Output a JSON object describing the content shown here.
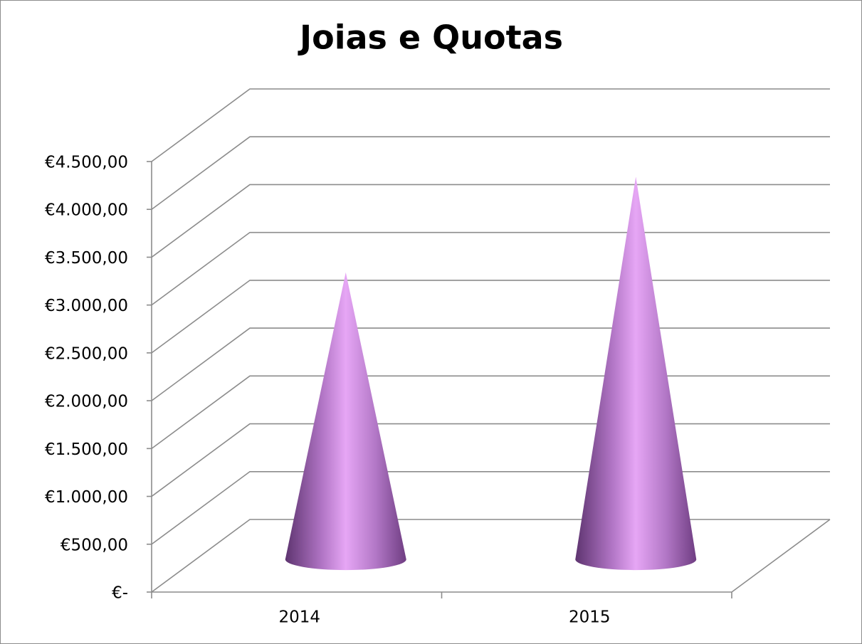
{
  "chart_data": {
    "type": "cone",
    "title": "Joias e Quotas",
    "categories": [
      "2014",
      "2015"
    ],
    "values": [
      3000,
      4000
    ],
    "color": "#c77fd9",
    "ylim": [
      0,
      4500
    ],
    "yticks": [
      {
        "value": 0,
        "label": "€-"
      },
      {
        "value": 500,
        "label": "€500,00"
      },
      {
        "value": 1000,
        "label": "€1.000,00"
      },
      {
        "value": 1500,
        "label": "€1.500,00"
      },
      {
        "value": 2000,
        "label": "€2.000,00"
      },
      {
        "value": 2500,
        "label": "€2.500,00"
      },
      {
        "value": 3000,
        "label": "€3.000,00"
      },
      {
        "value": 3500,
        "label": "€3.500,00"
      },
      {
        "value": 4000,
        "label": "€4.000,00"
      },
      {
        "value": 4500,
        "label": "€4.500,00"
      }
    ],
    "grid": true
  }
}
